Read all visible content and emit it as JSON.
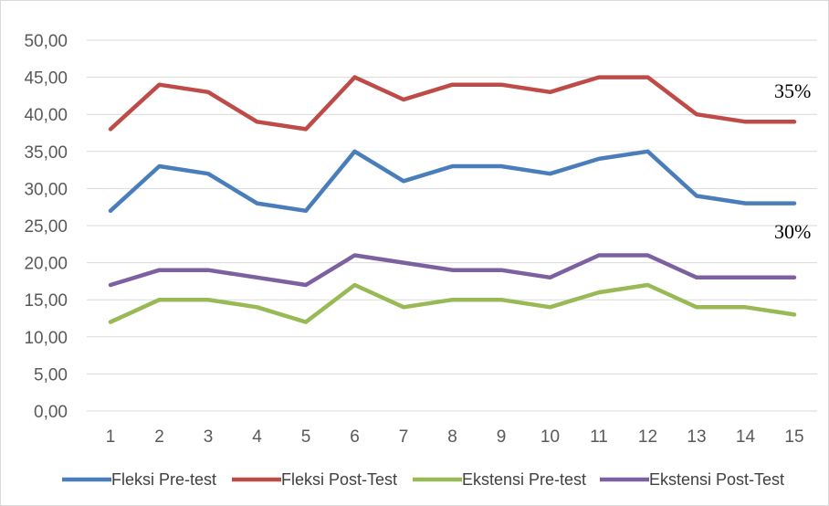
{
  "chart_data": {
    "type": "line",
    "categories": [
      "1",
      "2",
      "3",
      "4",
      "5",
      "6",
      "7",
      "8",
      "9",
      "10",
      "11",
      "12",
      "13",
      "14",
      "15"
    ],
    "y_ticks": [
      "0,00",
      "5,00",
      "10,00",
      "15,00",
      "20,00",
      "25,00",
      "30,00",
      "35,00",
      "40,00",
      "45,00",
      "50,00"
    ],
    "ylim": [
      0,
      50
    ],
    "grid": true,
    "legend_position": "bottom",
    "series": [
      {
        "name": "Fleksi Pre-test",
        "color": "#4a7ebb",
        "values": [
          27,
          33,
          32,
          28,
          27,
          35,
          31,
          33,
          33,
          32,
          34,
          35,
          29,
          28,
          28
        ]
      },
      {
        "name": "Fleksi Post-Test",
        "color": "#be4b48",
        "values": [
          38,
          44,
          43,
          39,
          38,
          45,
          42,
          44,
          44,
          43,
          45,
          45,
          40,
          39,
          39
        ]
      },
      {
        "name": "Ekstensi Pre-test",
        "color": "#98b954",
        "values": [
          12,
          15,
          15,
          14,
          12,
          17,
          14,
          15,
          15,
          14,
          16,
          17,
          14,
          14,
          13
        ]
      },
      {
        "name": "Ekstensi Post-Test",
        "color": "#7d60a0",
        "values": [
          17,
          19,
          19,
          18,
          17,
          21,
          20,
          19,
          19,
          18,
          21,
          21,
          18,
          18,
          18
        ]
      }
    ],
    "annotations": [
      {
        "text": "35%",
        "near": "Fleksi Post-Test"
      },
      {
        "text": "30%",
        "near": "Fleksi Pre-test"
      }
    ]
  }
}
